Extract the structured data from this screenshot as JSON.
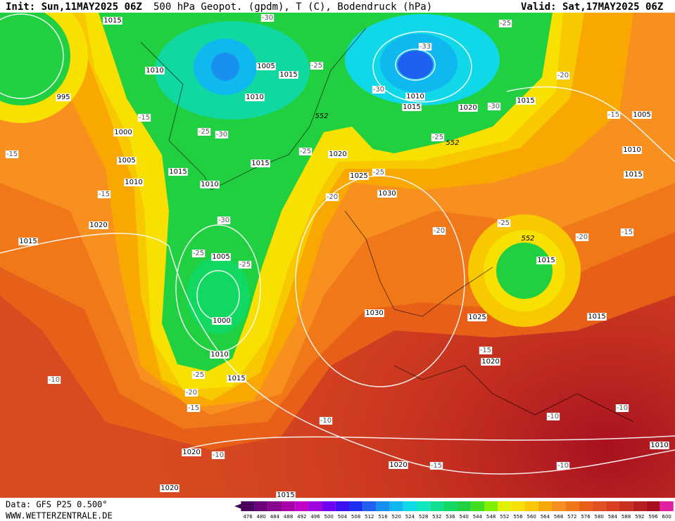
{
  "header": {
    "init": "Init: Sun,11MAY2025 06Z",
    "title": "500 hPa Geopot. (gpdm), T (C), Bodendruck (hPa)",
    "valid": "Valid: Sat,17MAY2025 06Z"
  },
  "footer": {
    "source": "Data: GFS P25 0.500°",
    "site": "WWW.WETTERZENTRALE.DE"
  },
  "pressure_labels": [
    1015,
    1010,
    995,
    1000,
    1005,
    1010,
    1015,
    1010,
    1015,
    1005,
    1015,
    1010,
    1020,
    1025,
    1030,
    1010,
    1015,
    1020,
    1015,
    1005,
    1010,
    1015,
    1020,
    1015,
    1005,
    1000,
    1010,
    1015,
    1030,
    1025,
    1015,
    1015,
    1020,
    1020,
    1020,
    1020,
    1015,
    1010
  ],
  "temperature_labels": [
    -30,
    -25,
    -33,
    -25,
    -30,
    -30,
    -20,
    -15,
    -15,
    -25,
    -30,
    -25,
    -25,
    -25,
    -15,
    -15,
    -20,
    -25,
    -20,
    -30,
    -25,
    -25,
    -20,
    -15,
    -25,
    -20,
    -15,
    -10,
    -15,
    -10,
    -10,
    -15,
    -10,
    -10,
    -10
  ],
  "geopotential_labels": [
    552,
    552,
    552
  ],
  "colorbar": {
    "ticks": [
      476,
      480,
      484,
      488,
      492,
      496,
      500,
      504,
      508,
      512,
      516,
      520,
      524,
      528,
      532,
      536,
      540,
      544,
      548,
      552,
      556,
      560,
      564,
      568,
      572,
      576,
      580,
      584,
      588,
      592,
      596,
      600
    ],
    "colors": [
      "#4b0060",
      "#6a007a",
      "#8a0090",
      "#a800a8",
      "#c000c8",
      "#a000e0",
      "#7000f0",
      "#4010f0",
      "#2030f0",
      "#2060f0",
      "#1890f0",
      "#10b8f0",
      "#10d8e8",
      "#10e8c0",
      "#10e090",
      "#10d860",
      "#20d040",
      "#40e020",
      "#80f000",
      "#e0f000",
      "#f8e000",
      "#f8c800",
      "#f8a800",
      "#f89020",
      "#f07818",
      "#e86018",
      "#e05020",
      "#d84020",
      "#c83020",
      "#b82020",
      "#a81020",
      "#e020a0"
    ]
  }
}
